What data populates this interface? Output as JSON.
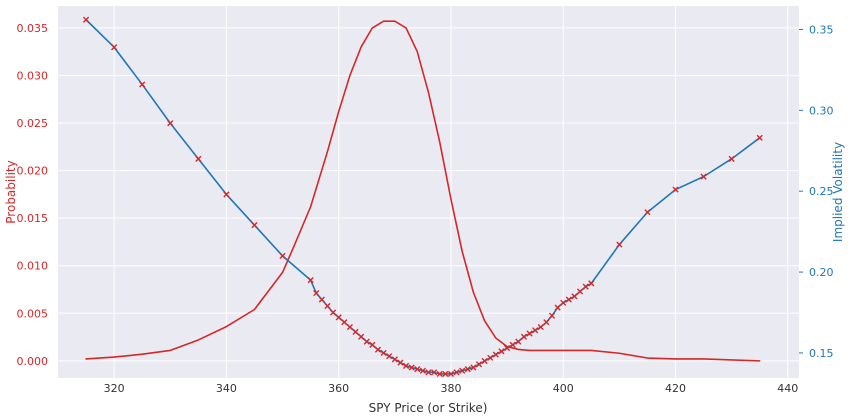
{
  "chart_data": {
    "type": "line",
    "title": "",
    "xlabel": "SPY Price (or Strike)",
    "ylabel_left": "Probability",
    "ylabel_right": "Implied Volatility",
    "xlim": [
      310,
      442
    ],
    "ylim_left": [
      -0.0018,
      0.0373
    ],
    "ylim_right": [
      0.1345,
      0.3645
    ],
    "x_ticks": [
      320,
      340,
      360,
      380,
      400,
      420,
      440
    ],
    "y_left_ticks": [
      "0.000",
      "0.005",
      "0.010",
      "0.015",
      "0.020",
      "0.025",
      "0.030",
      "0.035"
    ],
    "y_right_ticks": [
      "0.15",
      "0.20",
      "0.25",
      "0.30",
      "0.35"
    ],
    "grid": true,
    "colors": {
      "probability": "#d62728",
      "implied_volatility": "#1f77b4",
      "markers": "#d62728",
      "plot_background": "#eaeaf2",
      "grid": "#ffffff"
    },
    "series": [
      {
        "axis": "left",
        "x": [
          315,
          320,
          325,
          330,
          335,
          340,
          345,
          350,
          352,
          355,
          358,
          360,
          362,
          364,
          366,
          368,
          370,
          372,
          374,
          376,
          378,
          380,
          382,
          384,
          386,
          388,
          390,
          392,
          394,
          396,
          398,
          400,
          402,
          405,
          410,
          415,
          420,
          425,
          430,
          435
        ],
        "values": [
          0.0002,
          0.0004,
          0.0007,
          0.0011,
          0.0022,
          0.0036,
          0.0054,
          0.0093,
          0.012,
          0.0162,
          0.022,
          0.0262,
          0.03,
          0.033,
          0.035,
          0.0357,
          0.0357,
          0.035,
          0.0325,
          0.0282,
          0.023,
          0.017,
          0.0115,
          0.0072,
          0.0042,
          0.0024,
          0.0015,
          0.0012,
          0.0011,
          0.0011,
          0.0011,
          0.0011,
          0.0011,
          0.0011,
          0.0008,
          0.0003,
          0.0002,
          0.0002,
          0.0001,
          0.0
        ]
      },
      {
        "axis": "right",
        "markers": true,
        "x": [
          315,
          320,
          325,
          330,
          335,
          340,
          345,
          350,
          355,
          356,
          357,
          358,
          359,
          360,
          361,
          362,
          363,
          364,
          365,
          366,
          367,
          368,
          369,
          370,
          371,
          372,
          373,
          374,
          375,
          376,
          377,
          378,
          379,
          380,
          381,
          382,
          383,
          384,
          385,
          386,
          387,
          388,
          389,
          390,
          391,
          392,
          393,
          394,
          395,
          396,
          397,
          398,
          399,
          400,
          401,
          402,
          403,
          404,
          405,
          410,
          415,
          420,
          425,
          430,
          435
        ],
        "values": [
          0.356,
          0.339,
          0.316,
          0.292,
          0.27,
          0.248,
          0.229,
          0.21,
          0.195,
          0.187,
          0.183,
          0.179,
          0.175,
          0.172,
          0.169,
          0.166,
          0.163,
          0.16,
          0.157,
          0.155,
          0.152,
          0.15,
          0.148,
          0.146,
          0.144,
          0.142,
          0.141,
          0.14,
          0.139,
          0.138,
          0.138,
          0.137,
          0.137,
          0.137,
          0.138,
          0.139,
          0.14,
          0.141,
          0.143,
          0.145,
          0.147,
          0.149,
          0.151,
          0.153,
          0.155,
          0.157,
          0.16,
          0.162,
          0.164,
          0.166,
          0.169,
          0.173,
          0.178,
          0.181,
          0.183,
          0.185,
          0.188,
          0.191,
          0.193,
          0.217,
          0.237,
          0.251,
          0.259,
          0.27,
          0.283
        ]
      }
    ]
  }
}
